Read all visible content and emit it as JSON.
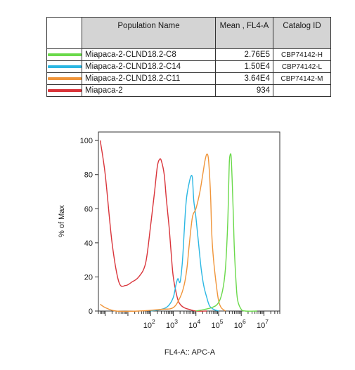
{
  "table": {
    "headers": [
      "Population Name",
      "Mean , FL4-A",
      "Catalog ID"
    ],
    "rows": [
      {
        "name": "Miapaca-2-CLND18.2-C8",
        "mean": "2.76E5",
        "catalog": "CBP74142-H",
        "color": "#6ad94a"
      },
      {
        "name": "Miapaca-2-CLND18.2-C14",
        "mean": "1.50E4",
        "catalog": "CBP74142-L",
        "color": "#2bb7e3"
      },
      {
        "name": "Miapaca-2-CLND18.2-C11",
        "mean": "3.64E4",
        "catalog": "CBP74142-M",
        "color": "#f0953a"
      },
      {
        "name": "Miapaca-2",
        "mean": "934",
        "catalog": "",
        "color": "#d9343a"
      }
    ]
  },
  "chart_data": {
    "type": "line",
    "title": "",
    "xlabel": "FL4-A:: APC-A",
    "ylabel": "% of Max",
    "x_scale": "log",
    "xlim": [
      0.5,
      50000000
    ],
    "ylim": [
      0,
      105
    ],
    "x_tick_labels": [
      {
        "base": "10",
        "exp": "2",
        "value": 100
      },
      {
        "base": "10",
        "exp": "3",
        "value": 1000
      },
      {
        "base": "10",
        "exp": "4",
        "value": 10000
      },
      {
        "base": "10",
        "exp": "5",
        "value": 100000
      },
      {
        "base": "10",
        "exp": "6",
        "value": 1000000
      },
      {
        "base": "10",
        "exp": "7",
        "value": 10000000
      }
    ],
    "y_ticks": [
      0,
      20,
      40,
      60,
      80,
      100
    ],
    "series": [
      {
        "name": "Miapaca-2",
        "color": "#d9343a",
        "x": [
          0.6,
          1,
          2,
          4,
          8,
          15,
          30,
          60,
          100,
          150,
          200,
          250,
          300,
          400,
          500,
          650,
          800,
          1000,
          1500,
          2000,
          3000,
          5000,
          10000,
          30000
        ],
        "y": [
          100,
          80,
          40,
          17,
          15,
          17,
          20,
          28,
          50,
          70,
          85,
          89,
          88,
          80,
          65,
          50,
          35,
          20,
          8,
          4,
          2,
          1,
          0,
          0
        ]
      },
      {
        "name": "Miapaca-2-CLND18.2-C14",
        "color": "#2bb7e3",
        "x": [
          100,
          300,
          600,
          1000,
          1300,
          1600,
          2000,
          2500,
          3000,
          3500,
          4000,
          5000,
          6000,
          7000,
          8000,
          10000,
          13000,
          17000,
          22000,
          30000,
          40000,
          60000,
          100000
        ],
        "y": [
          0,
          1,
          3,
          8,
          15,
          19,
          17,
          28,
          45,
          60,
          68,
          75,
          79,
          78,
          65,
          55,
          40,
          25,
          15,
          8,
          3,
          1,
          0
        ]
      },
      {
        "name": "Miapaca-2-CLND18.2-C11",
        "color": "#f0953a",
        "x": [
          0.6,
          1,
          3,
          30,
          300,
          1000,
          2000,
          3000,
          4000,
          5000,
          7000,
          10000,
          15000,
          20000,
          25000,
          30000,
          35000,
          40000,
          45000,
          50000,
          60000,
          80000,
          100000,
          130000,
          200000
        ],
        "y": [
          4,
          2,
          0,
          0,
          1,
          2,
          8,
          15,
          25,
          38,
          55,
          60,
          70,
          80,
          88,
          92,
          90,
          80,
          65,
          45,
          30,
          15,
          6,
          2,
          0
        ]
      },
      {
        "name": "Miapaca-2-CLND18.2-C8",
        "color": "#6ad94a",
        "x": [
          10000,
          50000,
          100000,
          150000,
          200000,
          250000,
          280000,
          300000,
          330000,
          360000,
          400000,
          450000,
          500000,
          600000,
          700000,
          1000000,
          1500000,
          5000000
        ],
        "y": [
          0,
          2,
          5,
          12,
          25,
          50,
          75,
          88,
          92,
          90,
          75,
          55,
          35,
          15,
          6,
          1,
          0,
          0
        ]
      }
    ]
  }
}
